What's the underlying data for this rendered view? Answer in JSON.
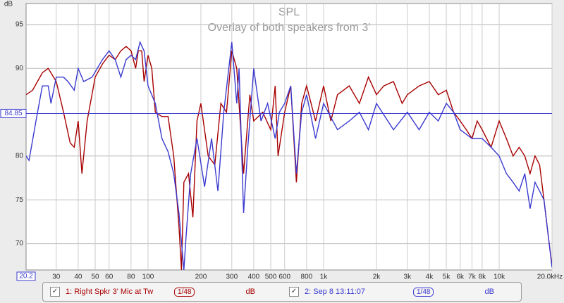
{
  "chart_data": {
    "type": "line",
    "title": "SPL",
    "subtitle": "Overlay of both speakers from 3'",
    "y_label": "dB",
    "x_unit": "Hz",
    "log_x": true,
    "grid": true,
    "cursor": 84.85,
    "cursor_color": "#3a3ad0",
    "xlim": [
      20.2,
      20000
    ],
    "ylim": [
      67,
      97.4
    ],
    "xticks": [
      30,
      40,
      50,
      60,
      80,
      100,
      200,
      300,
      400,
      500,
      600,
      800,
      {
        "value": 1000,
        "label": "1k"
      },
      {
        "value": 2000,
        "label": "2k"
      },
      {
        "value": 3000,
        "label": "3k"
      },
      {
        "value": 4000,
        "label": "4k"
      },
      {
        "value": 5000,
        "label": "5k"
      },
      {
        "value": 6000,
        "label": "6k"
      },
      {
        "value": 7000,
        "label": "7k"
      },
      {
        "value": 8000,
        "label": "8k"
      },
      {
        "value": 10000,
        "label": "10k"
      },
      {
        "value": 20000,
        "label": "20.0k"
      }
    ],
    "yticks": [
      70,
      75,
      80,
      90,
      95
    ],
    "series": [
      {
        "name": "1: Right Spkr 3' Mic at Tw",
        "smoothing": "1/48",
        "unit": "dB",
        "color": "#a80000",
        "x": [
          20.2,
          22,
          25,
          27,
          30,
          33,
          36,
          38,
          40,
          42,
          45,
          50,
          55,
          60,
          65,
          70,
          75,
          80,
          85,
          88,
          92,
          95,
          100,
          105,
          110,
          120,
          130,
          140,
          150,
          155,
          160,
          170,
          180,
          190,
          200,
          220,
          240,
          260,
          280,
          300,
          320,
          350,
          380,
          400,
          450,
          500,
          530,
          550,
          600,
          650,
          700,
          750,
          800,
          900,
          1000,
          1100,
          1200,
          1400,
          1600,
          1800,
          2000,
          2200,
          2500,
          2800,
          3000,
          3500,
          4000,
          4500,
          5000,
          5500,
          6000,
          6500,
          7000,
          7500,
          8000,
          9000,
          10000,
          11000,
          12000,
          13000,
          14000,
          15000,
          16000,
          17000,
          18000,
          19000,
          20000
        ],
        "values": [
          87,
          87.5,
          89.5,
          90,
          88.5,
          85,
          81.5,
          81,
          84,
          78,
          84,
          89,
          90.5,
          91.5,
          91,
          92,
          92.5,
          92,
          90,
          92,
          92,
          88.5,
          91.5,
          90,
          85,
          84.5,
          84.5,
          80,
          72,
          67,
          77,
          78,
          73,
          84,
          86,
          80,
          79,
          86,
          85,
          92,
          90,
          78,
          87,
          84,
          85,
          83,
          88,
          80,
          85,
          88,
          77,
          86,
          88,
          84,
          88,
          84,
          87,
          88,
          86,
          89,
          87,
          88,
          88.5,
          86,
          87,
          88,
          88.5,
          87,
          87.5,
          85,
          84,
          83,
          82,
          84,
          83,
          81,
          84,
          82,
          80,
          81,
          80,
          78,
          80,
          79,
          75,
          71,
          67.5
        ]
      },
      {
        "name": "2: Sep 8 13:11:07",
        "smoothing": "1/48",
        "unit": "dB",
        "color": "#3a3ad0",
        "x": [
          20.2,
          21,
          23,
          25,
          27,
          28,
          30,
          33,
          35,
          38,
          40,
          43,
          48,
          55,
          60,
          65,
          70,
          75,
          80,
          85,
          90,
          95,
          100,
          110,
          120,
          130,
          140,
          150,
          160,
          165,
          175,
          190,
          210,
          230,
          250,
          270,
          300,
          320,
          330,
          350,
          370,
          400,
          440,
          480,
          530,
          560,
          600,
          650,
          700,
          750,
          800,
          900,
          1000,
          1200,
          1400,
          1600,
          1800,
          2000,
          2500,
          3000,
          3500,
          4000,
          4500,
          5000,
          5500,
          6000,
          7000,
          8000,
          9000,
          10000,
          11000,
          12000,
          13000,
          14000,
          15000,
          16000,
          17000,
          18000,
          19000,
          20000
        ],
        "values": [
          80,
          79.5,
          84,
          88,
          88,
          86,
          89,
          89,
          88.5,
          87.5,
          90,
          88.5,
          89,
          91,
          92,
          91,
          89,
          91,
          91.5,
          91,
          93,
          92,
          88,
          86,
          82,
          80.5,
          78,
          73.5,
          67,
          71,
          78,
          82,
          76.5,
          82,
          76,
          85,
          93,
          86,
          90,
          73.5,
          81,
          90,
          84,
          86,
          82,
          85,
          86,
          88,
          78,
          85,
          87,
          82,
          86,
          83,
          84,
          85,
          83,
          86,
          83,
          85,
          83,
          85,
          84,
          86,
          85,
          83,
          82,
          82,
          81,
          80,
          78,
          77,
          76,
          78,
          74,
          77,
          76,
          75,
          71,
          67.3
        ]
      }
    ]
  }
}
